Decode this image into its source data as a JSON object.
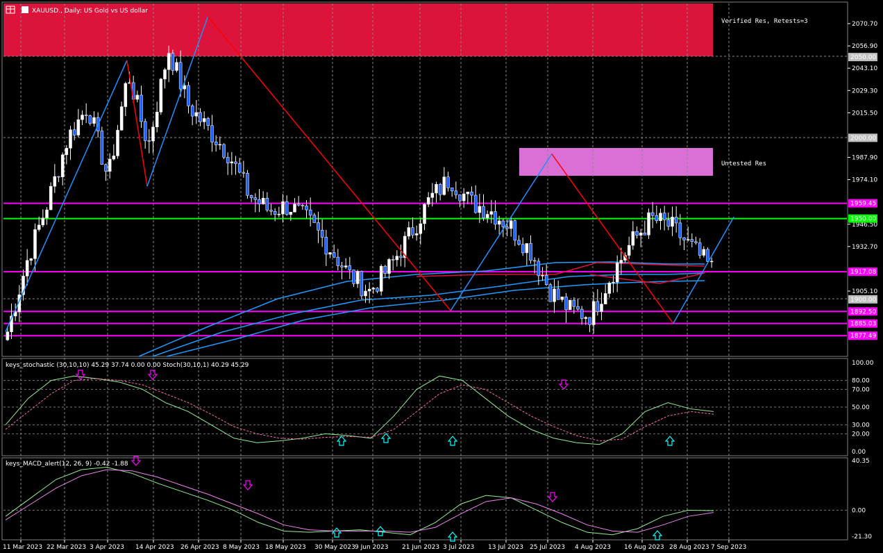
{
  "header": {
    "icon": "window-grid-icon",
    "symbol_title": "XAUUSD., Daily: US Gold vs US dollar"
  },
  "colors": {
    "background": "#000000",
    "resistance_verified": "#dc143c",
    "resistance_untested": "#da70d6",
    "level_line": "#ff00ff",
    "green_level": "#00ff00",
    "zigzag_up": "#1e90ff",
    "zigzag_down": "#ff0000",
    "ma_blue": "#1e9bff",
    "ma_red": "#e0103c",
    "bull_candle": "#ffffff",
    "bear_candle": "#1e60ff",
    "stoch_main": "#90ee90",
    "stoch_signal": "#ff69b4",
    "macd_main": "#90ee90",
    "macd_signal": "#ee82ee",
    "arrow_up": "#00ffff",
    "arrow_down": "#ff00ff"
  },
  "zones": {
    "verified_label": "Verified Res, Retests=3",
    "untested_label": "Untested Res"
  },
  "price_axis": {
    "ticks": [
      "2070.70",
      "2056.90",
      "2043.10",
      "2029.30",
      "2015.50",
      "1987.90",
      "1974.10",
      "1946.50",
      "1932.70",
      "1905.10"
    ],
    "badges": [
      "2050.00",
      "2000.00",
      "1959.45",
      "1950.00",
      "1917.08",
      "1900.00",
      "1892.50",
      "1885.03",
      "1877.49"
    ]
  },
  "time_axis": {
    "labels": [
      "11 Mar 2023",
      "22 Mar 2023",
      "3 Apr 2023",
      "14 Apr 2023",
      "26 Apr 2023",
      "8 May 2023",
      "18 May 2023",
      "30 May 2023",
      "9 Jun 2023",
      "21 Jun 2023",
      "3 Jul 2023",
      "13 Jul 2023",
      "25 Jul 2023",
      "4 Aug 2023",
      "16 Aug 2023",
      "28 Aug 2023",
      "7 Sep 2023"
    ]
  },
  "stoch_panel": {
    "title": "keys_stochastic (30,10,10) 45.29 37.74 0.00 0.00 Stoch(30,10,1) 40.29 45.29",
    "ticks": [
      "100.00",
      "80.00",
      "70.00",
      "50.00",
      "30.00",
      "20.00",
      "0.00"
    ]
  },
  "macd_panel": {
    "title": "keys_MACD_alert(12, 26, 9) -0.42 -1.88",
    "ticks": [
      "40.35",
      "0.00",
      "-21.30"
    ]
  },
  "chart_data": {
    "type": "candlestick",
    "title": "XAUUSD., Daily: US Gold vs US dollar",
    "ylim": [
      1870,
      2080
    ],
    "dates": [
      "11 Mar 2023",
      "22 Mar 2023",
      "3 Apr 2023",
      "14 Apr 2023",
      "26 Apr 2023",
      "8 May 2023",
      "18 May 2023",
      "30 May 2023",
      "9 Jun 2023",
      "21 Jun 2023",
      "3 Jul 2023",
      "13 Jul 2023",
      "25 Jul 2023",
      "4 Aug 2023",
      "16 Aug 2023",
      "28 Aug 2023",
      "7 Sep 2023"
    ],
    "close_path": [
      1880,
      1925,
      1960,
      2000,
      2020,
      1975,
      2040,
      1995,
      2055,
      2020,
      2005,
      1990,
      1965,
      1955,
      1958,
      1948,
      1932,
      1915,
      1905,
      1920,
      1940,
      1962,
      1975,
      1960,
      1955,
      1945,
      1930,
      1905,
      1893,
      1890,
      1915,
      1935,
      1950,
      1945,
      1932,
      1919
    ],
    "zones": [
      {
        "name": "Verified Res, Retests=3",
        "low": 2050,
        "high": 2081
      },
      {
        "name": "Untested Res",
        "low": 1978,
        "high": 1994
      }
    ],
    "levels": [
      1959.45,
      1950.0,
      1917.08,
      1892.5,
      1885.03,
      1877.49
    ],
    "zigzag": [
      [
        0,
        1880
      ],
      [
        6,
        2048
      ],
      [
        7,
        1970
      ],
      [
        10,
        2075
      ],
      [
        22,
        1893
      ],
      [
        27,
        1990
      ],
      [
        33,
        1885
      ],
      [
        36,
        1951
      ]
    ],
    "stochastic": {
      "main_last": 45.29,
      "signal_last": 37.74,
      "ylim": [
        0,
        100
      ]
    },
    "macd": {
      "main_last": -0.42,
      "signal_last": -1.88,
      "ylim": [
        -21.3,
        40.35
      ]
    }
  }
}
